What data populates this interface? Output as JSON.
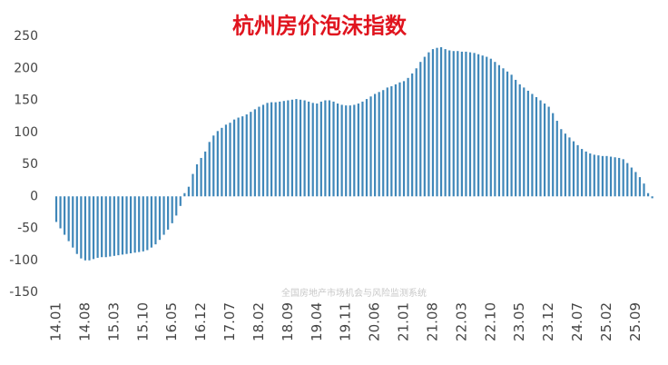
{
  "chart_data": {
    "type": "bar",
    "title": "杭州房价泡沫指数",
    "watermark": "全国房地产市场机会与风险监测系统",
    "categories": [
      "14.01",
      null,
      null,
      null,
      null,
      null,
      null,
      "14.08",
      null,
      null,
      null,
      null,
      null,
      null,
      "15.03",
      null,
      null,
      null,
      null,
      null,
      null,
      "15.10",
      null,
      null,
      null,
      null,
      null,
      null,
      "16.05",
      null,
      null,
      null,
      null,
      null,
      null,
      "16.12",
      null,
      null,
      null,
      null,
      null,
      null,
      "17.07",
      null,
      null,
      null,
      null,
      null,
      null,
      "18.02",
      null,
      null,
      null,
      null,
      null,
      null,
      "18.09",
      null,
      null,
      null,
      null,
      null,
      null,
      "19.04",
      null,
      null,
      null,
      null,
      null,
      null,
      "19.11",
      null,
      null,
      null,
      null,
      null,
      null,
      "20.06",
      null,
      null,
      null,
      null,
      null,
      null,
      "21.01",
      null,
      null,
      null,
      null,
      null,
      null,
      "21.08",
      null,
      null,
      null,
      null,
      null,
      null,
      "22.03",
      null,
      null,
      null,
      null,
      null,
      null,
      "22.10",
      null,
      null,
      null,
      null,
      null,
      null,
      "23.05",
      null,
      null,
      null,
      null,
      null,
      null,
      "23.12",
      null,
      null,
      null,
      null,
      null,
      null,
      "24.07",
      null,
      null,
      null,
      null,
      null,
      null,
      "25.02",
      null,
      null,
      null,
      null,
      null,
      null,
      "25.09",
      null,
      null,
      null,
      null
    ],
    "values": [
      -40,
      -50,
      -60,
      -70,
      -80,
      -90,
      -97,
      -100,
      -100,
      -98,
      -96,
      -95,
      -95,
      -94,
      -93,
      -92,
      -91,
      -90,
      -89,
      -88,
      -87,
      -86,
      -84,
      -80,
      -75,
      -68,
      -60,
      -52,
      -42,
      -30,
      -15,
      5,
      15,
      35,
      50,
      60,
      70,
      85,
      95,
      102,
      107,
      112,
      115,
      120,
      123,
      125,
      128,
      132,
      136,
      140,
      143,
      146,
      147,
      147,
      148,
      149,
      150,
      151,
      152,
      151,
      150,
      148,
      146,
      145,
      148,
      150,
      150,
      148,
      145,
      143,
      142,
      142,
      143,
      145,
      148,
      152,
      156,
      160,
      163,
      166,
      170,
      172,
      175,
      178,
      180,
      185,
      192,
      200,
      210,
      218,
      225,
      230,
      232,
      233,
      230,
      228,
      227,
      227,
      226,
      226,
      225,
      224,
      222,
      220,
      218,
      215,
      210,
      205,
      200,
      195,
      190,
      182,
      175,
      170,
      165,
      160,
      155,
      150,
      145,
      140,
      130,
      118,
      105,
      98,
      92,
      86,
      80,
      74,
      70,
      67,
      65,
      64,
      63,
      63,
      62,
      61,
      60,
      58,
      52,
      45,
      38,
      30,
      20,
      5,
      -3
    ],
    "color": "#3f87b9",
    "ylim": [
      -150,
      250
    ],
    "yticks": [
      -150,
      -100,
      -50,
      0,
      50,
      100,
      150,
      200,
      250
    ]
  }
}
